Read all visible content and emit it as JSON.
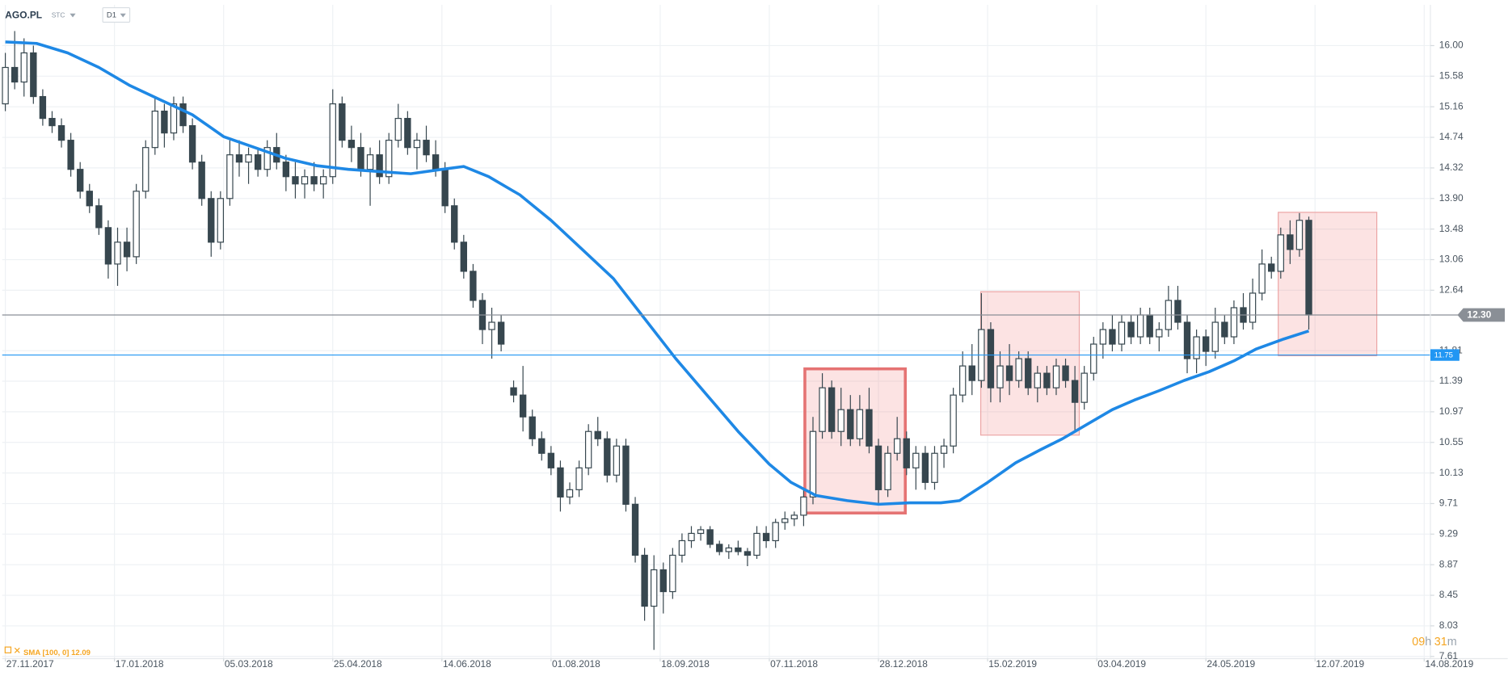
{
  "chart_data": {
    "type": "candlestick",
    "symbol": "AGO.PL",
    "market": "STC",
    "interval": "D1",
    "indicator_label": "SMA [100, 0] 12.09",
    "timer": {
      "hours": "09",
      "hours_unit": "h",
      "minutes": "31",
      "minutes_unit": "m"
    },
    "xlim": [
      -1,
      457
    ],
    "xticks": [
      {
        "value": 0,
        "label": "27.11.2017"
      },
      {
        "value": 35,
        "label": "17.01.2018"
      },
      {
        "value": 70,
        "label": "05.03.2018"
      },
      {
        "value": 105,
        "label": "25.04.2018"
      },
      {
        "value": 140,
        "label": "14.06.2018"
      },
      {
        "value": 175,
        "label": "01.08.2018"
      },
      {
        "value": 210,
        "label": "18.09.2018"
      },
      {
        "value": 245,
        "label": "07.11.2018"
      },
      {
        "value": 280,
        "label": "28.12.2018"
      },
      {
        "value": 315,
        "label": "15.02.2019"
      },
      {
        "value": 350,
        "label": "03.04.2019"
      },
      {
        "value": 385,
        "label": "24.05.2019"
      },
      {
        "value": 420,
        "label": "12.07.2019"
      },
      {
        "value": 455,
        "label": "14.08.2019"
      }
    ],
    "ylim": [
      7.58,
      16.56
    ],
    "yticks": [
      {
        "value": 16,
        "label": "16.00"
      },
      15.58,
      15.16,
      14.74,
      14.32,
      {
        "value": 13.9,
        "label": "13.90"
      },
      13.48,
      13.06,
      12.64,
      11.81,
      11.39,
      10.97,
      10.55,
      10.13,
      9.71,
      9.29,
      8.87,
      8.45,
      8.03,
      7.61
    ],
    "grid": true,
    "up_color": "#ffffff",
    "down_color": "#37474f",
    "x": [
      0,
      3,
      6,
      9,
      12,
      15,
      18,
      21,
      24,
      27,
      30,
      33,
      36,
      39,
      42,
      45,
      48,
      51,
      54,
      57,
      60,
      63,
      66,
      69,
      72,
      75,
      78,
      81,
      84,
      87,
      90,
      93,
      96,
      99,
      102,
      105,
      108,
      111,
      114,
      117,
      120,
      123,
      126,
      129,
      132,
      135,
      138,
      141,
      144,
      147,
      150,
      153,
      156,
      159,
      163,
      166,
      169,
      172,
      175,
      178,
      181,
      184,
      187,
      190,
      193,
      196,
      199,
      202,
      205,
      208,
      211,
      214,
      217,
      220,
      223,
      226,
      229,
      232,
      235,
      238,
      241,
      244,
      247,
      250,
      253,
      256,
      259,
      262,
      265,
      268,
      271,
      274,
      277,
      280,
      283,
      286,
      289,
      292,
      295,
      298,
      301,
      304,
      307,
      310,
      313,
      316,
      319,
      322,
      325,
      328,
      331,
      334,
      337,
      340,
      343,
      346,
      349,
      352,
      355,
      358,
      361,
      364,
      367,
      370,
      373,
      376,
      379,
      382,
      385,
      388,
      391,
      394,
      397,
      400,
      403,
      406,
      409,
      412,
      415,
      418
    ],
    "open": [
      15.2,
      15.7,
      15.5,
      15.9,
      15.3,
      15.0,
      14.9,
      14.7,
      14.3,
      14.0,
      13.8,
      13.5,
      13.0,
      13.3,
      13.1,
      14.0,
      14.6,
      15.1,
      14.8,
      15.2,
      14.9,
      14.4,
      13.9,
      13.3,
      13.9,
      14.5,
      14.4,
      14.5,
      14.3,
      14.6,
      14.4,
      14.2,
      14.1,
      14.2,
      14.1,
      14.2,
      15.2,
      14.7,
      14.6,
      14.3,
      14.5,
      14.2,
      14.7,
      15.0,
      14.6,
      14.7,
      14.5,
      14.3,
      13.8,
      13.3,
      12.9,
      12.5,
      12.1,
      12.2,
      11.3,
      11.2,
      10.9,
      10.6,
      10.4,
      10.2,
      9.8,
      9.9,
      10.2,
      10.7,
      10.6,
      10.1,
      10.5,
      9.7,
      9.0,
      8.3,
      8.8,
      8.5,
      9.0,
      9.2,
      9.3,
      9.35,
      9.15,
      9.05,
      9.1,
      9.05,
      9.0,
      9.3,
      9.2,
      9.45,
      9.5,
      9.55,
      9.8,
      10.7,
      11.3,
      10.7,
      11.0,
      10.6,
      11.0,
      10.5,
      9.9,
      10.4,
      10.6,
      10.2,
      10.4,
      10.0,
      10.4,
      10.5,
      11.2,
      11.6,
      11.4,
      12.1,
      11.3,
      11.6,
      11.4,
      11.7,
      11.3,
      11.5,
      11.3,
      11.6,
      11.4,
      11.1,
      11.5,
      11.9,
      12.1,
      11.9,
      12.2,
      12.0,
      12.3,
      12.0,
      12.1,
      12.5,
      12.2,
      11.7,
      12.0,
      11.8,
      12.2,
      12.0,
      12.4,
      12.2,
      12.6,
      13.0,
      12.9,
      13.4,
      13.2,
      13.6
    ],
    "high": [
      15.9,
      16.2,
      16.1,
      16.0,
      15.4,
      15.1,
      15.0,
      14.8,
      14.4,
      14.1,
      13.9,
      13.6,
      13.5,
      13.5,
      14.1,
      14.7,
      15.3,
      15.2,
      15.3,
      15.3,
      15.0,
      14.5,
      14.0,
      14.0,
      14.7,
      14.7,
      14.6,
      14.6,
      14.7,
      14.8,
      14.5,
      14.4,
      14.3,
      14.4,
      14.3,
      15.4,
      15.3,
      14.9,
      14.8,
      14.6,
      14.7,
      14.8,
      15.2,
      15.1,
      14.8,
      14.9,
      14.7,
      14.4,
      13.9,
      13.4,
      13.0,
      12.6,
      12.4,
      12.3,
      11.4,
      11.6,
      11.0,
      10.7,
      10.5,
      10.3,
      10.0,
      10.3,
      10.8,
      10.9,
      10.7,
      10.6,
      10.6,
      9.8,
      9.1,
      9.0,
      8.9,
      9.1,
      9.3,
      9.4,
      9.4,
      9.4,
      9.2,
      9.15,
      9.2,
      9.1,
      9.4,
      9.4,
      9.5,
      9.6,
      9.6,
      9.9,
      10.9,
      11.5,
      11.4,
      11.3,
      11.2,
      11.2,
      11.3,
      10.6,
      10.5,
      10.9,
      10.7,
      10.5,
      10.5,
      10.5,
      10.6,
      11.3,
      11.8,
      11.9,
      12.6,
      12.2,
      11.8,
      11.9,
      11.8,
      11.8,
      11.6,
      11.6,
      11.7,
      11.7,
      11.6,
      11.6,
      12.0,
      12.2,
      12.3,
      12.3,
      12.3,
      12.4,
      12.4,
      12.2,
      12.7,
      12.7,
      12.3,
      12.1,
      12.1,
      12.4,
      12.3,
      12.5,
      12.6,
      12.8,
      13.2,
      13.1,
      13.5,
      13.6,
      13.7,
      13.65
    ],
    "low": [
      15.1,
      15.4,
      15.3,
      15.2,
      14.9,
      14.8,
      14.6,
      14.2,
      13.9,
      13.7,
      13.4,
      12.8,
      12.7,
      12.9,
      13.0,
      13.9,
      14.5,
      14.6,
      14.7,
      14.8,
      14.3,
      13.8,
      13.1,
      13.2,
      13.8,
      14.2,
      14.1,
      14.2,
      14.2,
      14.3,
      14.0,
      13.9,
      13.9,
      14.0,
      13.9,
      14.1,
      14.6,
      14.4,
      14.2,
      13.8,
      14.1,
      14.1,
      14.6,
      14.5,
      14.3,
      14.4,
      14.2,
      13.7,
      13.2,
      12.8,
      12.4,
      11.9,
      11.7,
      11.8,
      11.1,
      10.7,
      10.5,
      10.3,
      10.1,
      9.6,
      9.7,
      9.8,
      10.1,
      10.5,
      10.0,
      10.0,
      9.6,
      8.9,
      8.1,
      7.7,
      8.2,
      8.4,
      8.9,
      9.1,
      9.2,
      9.1,
      9.0,
      8.95,
      9.0,
      8.85,
      8.95,
      9.1,
      9.1,
      9.35,
      9.4,
      9.4,
      9.7,
      10.6,
      10.6,
      10.5,
      10.5,
      10.5,
      10.4,
      9.7,
      9.8,
      10.3,
      10.1,
      9.9,
      9.9,
      9.9,
      10.2,
      10.4,
      11.1,
      11.2,
      11.3,
      11.1,
      11.1,
      11.2,
      11.3,
      11.2,
      11.1,
      11.2,
      11.2,
      11.3,
      10.7,
      11.0,
      11.4,
      11.7,
      11.8,
      11.8,
      11.9,
      11.9,
      11.9,
      11.8,
      12.0,
      12.1,
      11.5,
      11.5,
      11.6,
      11.7,
      11.9,
      11.9,
      12.1,
      12.1,
      12.5,
      12.8,
      12.8,
      13.0,
      13.1,
      12.1
    ],
    "close": [
      15.7,
      15.5,
      15.9,
      15.3,
      15.0,
      14.9,
      14.7,
      14.3,
      14.0,
      13.8,
      13.5,
      13.0,
      13.3,
      13.1,
      14.0,
      14.6,
      15.1,
      14.8,
      15.2,
      14.9,
      14.4,
      13.9,
      13.3,
      13.9,
      14.5,
      14.4,
      14.5,
      14.3,
      14.6,
      14.4,
      14.2,
      14.1,
      14.2,
      14.1,
      14.2,
      15.2,
      14.7,
      14.6,
      14.3,
      14.5,
      14.2,
      14.7,
      15.0,
      14.6,
      14.7,
      14.5,
      14.3,
      13.8,
      13.3,
      12.9,
      12.5,
      12.1,
      12.2,
      11.9,
      11.2,
      10.9,
      10.6,
      10.4,
      10.2,
      9.8,
      9.9,
      10.2,
      10.7,
      10.6,
      10.1,
      10.5,
      9.7,
      9.0,
      8.3,
      8.8,
      8.5,
      9.0,
      9.2,
      9.3,
      9.35,
      9.15,
      9.05,
      9.1,
      9.05,
      9.0,
      9.3,
      9.2,
      9.45,
      9.5,
      9.55,
      9.8,
      10.7,
      11.3,
      10.7,
      11.0,
      10.6,
      11.0,
      10.5,
      9.9,
      10.4,
      10.6,
      10.2,
      10.4,
      10.0,
      10.4,
      10.5,
      11.2,
      11.6,
      11.4,
      12.1,
      11.3,
      11.6,
      11.4,
      11.7,
      11.3,
      11.5,
      11.3,
      11.6,
      11.4,
      11.1,
      11.5,
      11.9,
      12.1,
      11.9,
      12.2,
      12.0,
      12.3,
      12.0,
      12.1,
      12.5,
      12.2,
      11.7,
      12.0,
      11.8,
      12.2,
      12.0,
      12.4,
      12.2,
      12.6,
      13.0,
      12.9,
      13.4,
      13.2,
      13.6,
      12.3
    ],
    "sma": {
      "color": "#1e88e5",
      "x": [
        0,
        10,
        20,
        30,
        40,
        50,
        60,
        70,
        80,
        90,
        100,
        110,
        120,
        130,
        140,
        147,
        155,
        165,
        175,
        185,
        195,
        205,
        215,
        225,
        235,
        245,
        252,
        260,
        270,
        280,
        290,
        300,
        306,
        315,
        324,
        332,
        339,
        347,
        355,
        362,
        370,
        378,
        386,
        394,
        401,
        410,
        418
      ],
      "values": [
        16.05,
        16.03,
        15.9,
        15.7,
        15.45,
        15.25,
        15.05,
        14.75,
        14.6,
        14.45,
        14.35,
        14.3,
        14.27,
        14.24,
        14.3,
        14.34,
        14.2,
        13.95,
        13.6,
        13.2,
        12.8,
        12.25,
        11.7,
        11.2,
        10.7,
        10.25,
        10.0,
        9.82,
        9.75,
        9.7,
        9.72,
        9.72,
        9.75,
        10.0,
        10.27,
        10.45,
        10.6,
        10.8,
        11.0,
        11.13,
        11.26,
        11.4,
        11.52,
        11.67,
        11.83,
        11.97,
        12.08
      ]
    },
    "levels": [
      {
        "value": 12.3,
        "label": "12.30",
        "color": "#8a8f96"
      },
      {
        "value": 11.75,
        "label": "11.75",
        "color": "#2196f3"
      }
    ],
    "zones": [
      {
        "x0": 256.4,
        "x1": 288.6,
        "y0": 9.58,
        "y1": 11.56,
        "highlight": true
      },
      {
        "x0": 312.8,
        "x1": 344.4,
        "y0": 10.65,
        "y1": 12.62,
        "highlight": false
      },
      {
        "x0": 408.2,
        "x1": 439.8,
        "y0": 11.74,
        "y1": 13.71,
        "highlight": false
      }
    ]
  }
}
